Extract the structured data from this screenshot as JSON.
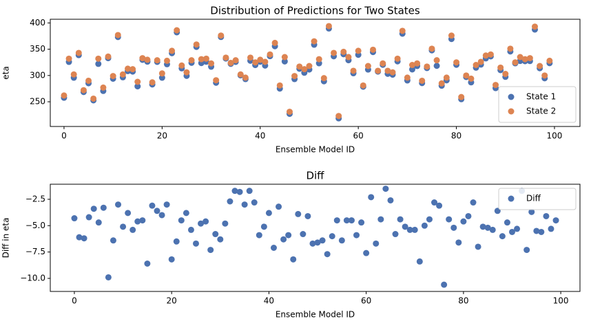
{
  "chart_data": [
    {
      "type": "scatter",
      "title": "Distribution of Predictions for Two States",
      "xlabel": "Ensemble Model ID",
      "ylabel": "eta",
      "x": [
        0,
        1,
        2,
        3,
        4,
        5,
        6,
        7,
        8,
        9,
        10,
        11,
        12,
        13,
        14,
        15,
        16,
        17,
        18,
        19,
        20,
        21,
        22,
        23,
        24,
        25,
        26,
        27,
        28,
        29,
        30,
        31,
        32,
        33,
        34,
        35,
        36,
        37,
        38,
        39,
        40,
        41,
        42,
        43,
        44,
        45,
        46,
        47,
        48,
        49,
        50,
        51,
        52,
        53,
        54,
        55,
        56,
        57,
        58,
        59,
        60,
        61,
        62,
        63,
        64,
        65,
        66,
        67,
        68,
        69,
        70,
        71,
        72,
        73,
        74,
        75,
        76,
        77,
        78,
        79,
        80,
        81,
        82,
        83,
        84,
        85,
        86,
        87,
        88,
        89,
        90,
        91,
        92,
        93,
        94,
        95,
        96,
        97,
        98,
        99
      ],
      "series": [
        {
          "name": "State 1",
          "color": "#4c72b0",
          "values": [
            257.7,
            325.9,
            295.8,
            338.8,
            268.6,
            285.3,
            252.7,
            322.1,
            270.6,
            333,
            293.9,
            373.2,
            296.6,
            308.4,
            307.5,
            279.4,
            329.9,
            326.4,
            283,
            326,
            295.8,
            321.5,
            342.5,
            382.2,
            313.6,
            299.3,
            324.2,
            354.4,
            323.7,
            326.2,
            316.7,
            286.2,
            373.3,
            332.3,
            322.2,
            326,
            300.3,
            293.2,
            328.1,
            319.9,
            326.2,
            318.9,
            336.8,
            355.7,
            275.1,
            326.8,
            227.1,
            293.2,
            312.9,
            305.3,
            311.4,
            358.6,
            323.3,
            289,
            389.5,
            336.6,
            218.5,
            340.5,
            329.1,
            304.3,
            339.4,
            278.7,
            311.3,
            344.6,
            307.5,
            320.4,
            303.2,
            301.6,
            326.9,
            379.6,
            290.6,
            311.6,
            318,
            285.6,
            314.2,
            347.9,
            318.4,
            280.6,
            290.8,
            369.4,
            320.4,
            254.9,
            297.2,
            287,
            314.9,
            320.8,
            332.6,
            336.4,
            276,
            310.3,
            297.4,
            345.7,
            323.3,
            327.7,
            327.3,
            327.5,
            387.4,
            313.9,
            294.7,
            323.5
          ]
        },
        {
          "name": "State 2",
          "color": "#dd8452",
          "values": [
            262,
            332,
            302,
            343,
            272,
            290,
            256,
            332,
            277,
            336,
            299,
            377,
            302,
            313,
            312,
            288,
            333,
            330,
            287,
            329,
            304,
            328,
            347,
            386,
            319,
            306,
            329,
            359,
            331,
            332,
            323,
            291,
            376,
            334,
            324,
            329,
            302,
            296,
            334,
            325,
            330,
            326,
            340,
            362,
            281,
            335,
            231,
            299,
            317,
            312,
            318,
            365,
            331,
            295,
            394,
            343,
            223,
            345,
            335,
            309,
            347,
            281,
            318,
            349,
            309,
            323,
            309,
            306,
            332,
            385,
            296,
            320,
            323,
            290,
            317,
            351,
            329,
            285,
            296,
            376,
            325,
            259,
            300,
            294,
            320,
            326,
            338,
            340,
            282,
            315,
            303,
            351,
            325,
            335,
            331,
            333,
            393,
            318,
            300,
            328
          ]
        }
      ],
      "xlim": [
        -2.8,
        105.2
      ],
      "xticks": [
        0,
        20,
        40,
        60,
        80,
        100
      ],
      "ylim": [
        203,
        407
      ],
      "yticks": [
        250,
        300,
        350,
        400
      ],
      "legend": "lower right"
    },
    {
      "type": "scatter",
      "title": "Diff",
      "xlabel": "Ensemble Model ID",
      "ylabel": "Diff in eta",
      "x": [
        0,
        1,
        2,
        3,
        4,
        5,
        6,
        7,
        8,
        9,
        10,
        11,
        12,
        13,
        14,
        15,
        16,
        17,
        18,
        19,
        20,
        21,
        22,
        23,
        24,
        25,
        26,
        27,
        28,
        29,
        30,
        31,
        32,
        33,
        34,
        35,
        36,
        37,
        38,
        39,
        40,
        41,
        42,
        43,
        44,
        45,
        46,
        47,
        48,
        49,
        50,
        51,
        52,
        53,
        54,
        55,
        56,
        57,
        58,
        59,
        60,
        61,
        62,
        63,
        64,
        65,
        66,
        67,
        68,
        69,
        70,
        71,
        72,
        73,
        74,
        75,
        76,
        77,
        78,
        79,
        80,
        81,
        82,
        83,
        84,
        85,
        86,
        87,
        88,
        89,
        90,
        91,
        92,
        93,
        94,
        95,
        96,
        97,
        98,
        99
      ],
      "series": [
        {
          "name": "Diff",
          "color": "#4c72b0",
          "values": [
            -4.3,
            -6.1,
            -6.2,
            -4.2,
            -3.4,
            -4.7,
            -3.3,
            -9.9,
            -6.4,
            -3.0,
            -5.1,
            -3.8,
            -5.4,
            -4.6,
            -4.5,
            -8.6,
            -3.1,
            -3.6,
            -4.0,
            -3.0,
            -8.2,
            -6.5,
            -4.5,
            -3.8,
            -5.4,
            -6.7,
            -4.8,
            -4.6,
            -7.3,
            -5.8,
            -6.3,
            -4.8,
            -2.7,
            -1.7,
            -1.8,
            -3.0,
            -1.7,
            -2.8,
            -5.9,
            -5.1,
            -3.8,
            -7.1,
            -3.2,
            -6.3,
            -5.9,
            -8.2,
            -3.9,
            -5.8,
            -4.1,
            -6.7,
            -6.6,
            -6.4,
            -7.7,
            -6.0,
            -4.5,
            -6.4,
            -4.5,
            -4.5,
            -5.9,
            -4.7,
            -7.6,
            -2.3,
            -6.7,
            -4.4,
            -1.5,
            -2.6,
            -5.8,
            -4.4,
            -5.1,
            -5.4,
            -5.4,
            -8.4,
            -5.0,
            -4.4,
            -2.8,
            -3.1,
            -10.6,
            -4.4,
            -5.2,
            -6.6,
            -4.6,
            -4.1,
            -2.8,
            -7.0,
            -5.1,
            -5.2,
            -5.4,
            -3.6,
            -6.0,
            -4.7,
            -5.6,
            -5.3,
            -1.7,
            -7.3,
            -3.7,
            -5.5,
            -5.6,
            -4.1,
            -5.3,
            -4.5
          ]
        }
      ],
      "xlim": [
        -4.95,
        103.95
      ],
      "xticks": [
        0,
        20,
        40,
        60,
        80,
        100
      ],
      "ylim": [
        -11.24,
        -1.07
      ],
      "yticks": [
        {
          "value": -2.5,
          "label": "−2.5"
        },
        {
          "value": -5.0,
          "label": "−5.0"
        },
        {
          "value": -7.5,
          "label": "−7.5"
        },
        {
          "value": -10.0,
          "label": "−10.0"
        }
      ],
      "legend": "upper right"
    }
  ]
}
